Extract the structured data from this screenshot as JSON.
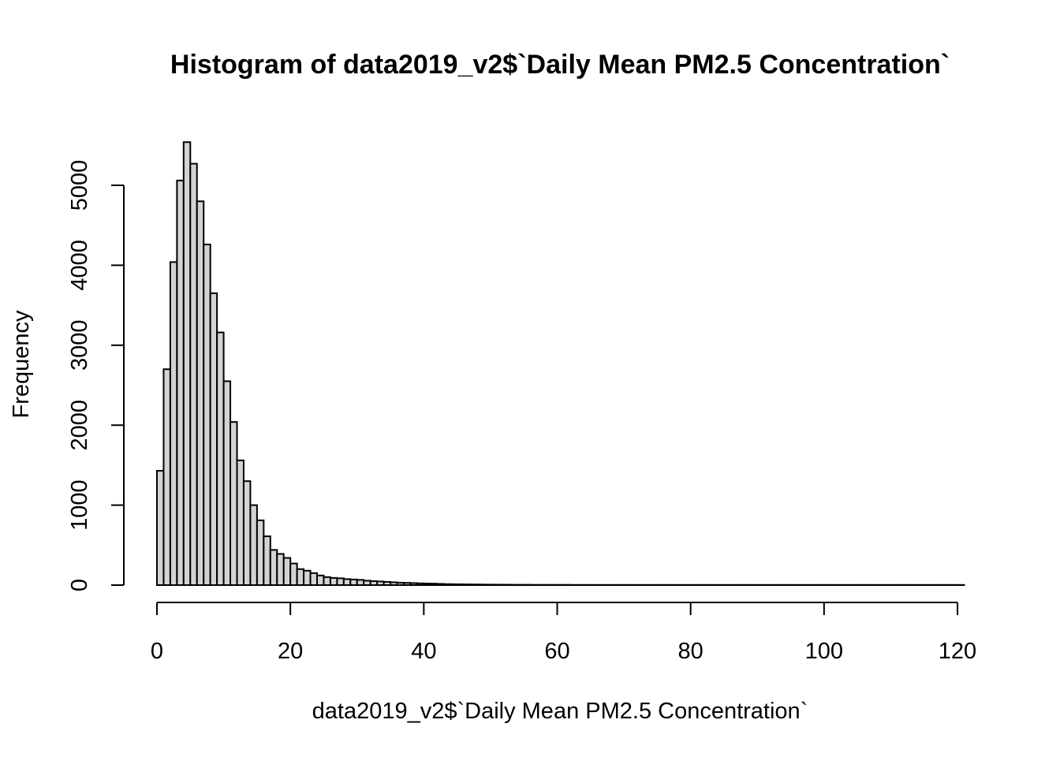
{
  "chart_data": {
    "type": "bar",
    "title": "Histogram of data2019_v2$`Daily Mean PM2.5 Concentration`",
    "xlabel": "data2019_v2$`Daily Mean PM2.5 Concentration`",
    "ylabel": "Frequency",
    "bin_width": 1,
    "xlim": [
      0,
      121
    ],
    "ylim": [
      0,
      5500
    ],
    "x_ticks": [
      0,
      20,
      40,
      60,
      80,
      100,
      120
    ],
    "y_ticks": [
      0,
      1000,
      2000,
      3000,
      4000,
      5000
    ],
    "bin_starts": [
      0,
      1,
      2,
      3,
      4,
      5,
      6,
      7,
      8,
      9,
      10,
      11,
      12,
      13,
      14,
      15,
      16,
      17,
      18,
      19,
      20,
      21,
      22,
      23,
      24,
      25,
      26,
      27,
      28,
      29,
      30,
      31,
      32,
      33,
      34,
      35,
      36,
      37,
      38,
      39,
      40,
      41,
      42,
      43,
      44,
      45,
      46,
      47,
      48,
      49,
      50,
      51,
      52,
      53,
      54,
      55,
      56,
      57,
      58,
      59,
      60,
      61,
      62,
      63,
      64,
      65,
      66,
      67,
      68,
      69,
      70,
      71,
      72,
      73,
      74,
      75,
      76,
      77,
      78,
      79,
      80,
      81,
      82,
      83,
      84,
      85,
      86,
      87,
      88,
      89,
      90,
      91,
      92,
      93,
      94,
      95,
      96,
      97,
      98,
      99,
      100,
      101,
      102,
      103,
      104,
      105,
      106,
      107,
      108,
      109,
      110,
      111,
      112,
      113,
      114,
      115,
      116,
      117,
      118,
      119,
      120
    ],
    "values": [
      1430,
      2700,
      4040,
      5060,
      5540,
      5270,
      4800,
      4260,
      3650,
      3160,
      2550,
      2040,
      1560,
      1300,
      1000,
      810,
      610,
      440,
      390,
      340,
      270,
      200,
      180,
      150,
      120,
      100,
      90,
      85,
      75,
      70,
      65,
      55,
      50,
      45,
      40,
      35,
      30,
      28,
      25,
      22,
      20,
      18,
      15,
      12,
      11,
      10,
      9,
      8,
      7,
      6,
      6,
      5,
      5,
      4,
      4,
      4,
      3,
      3,
      3,
      3,
      3,
      3,
      2,
      2,
      2,
      2,
      2,
      2,
      2,
      2,
      2,
      2,
      2,
      2,
      2,
      2,
      2,
      2,
      2,
      2,
      2,
      2,
      2,
      2,
      2,
      2,
      2,
      2,
      2,
      2,
      2,
      2,
      2,
      2,
      2,
      2,
      2,
      2,
      2,
      2,
      2,
      2,
      2,
      2,
      2,
      2,
      2,
      2,
      2,
      2,
      2,
      2,
      2,
      2,
      2,
      2,
      2,
      2,
      2,
      2,
      2
    ],
    "grid": false,
    "colors": {
      "bar_fill": "#d3d3d3",
      "bar_stroke": "#000000"
    }
  }
}
